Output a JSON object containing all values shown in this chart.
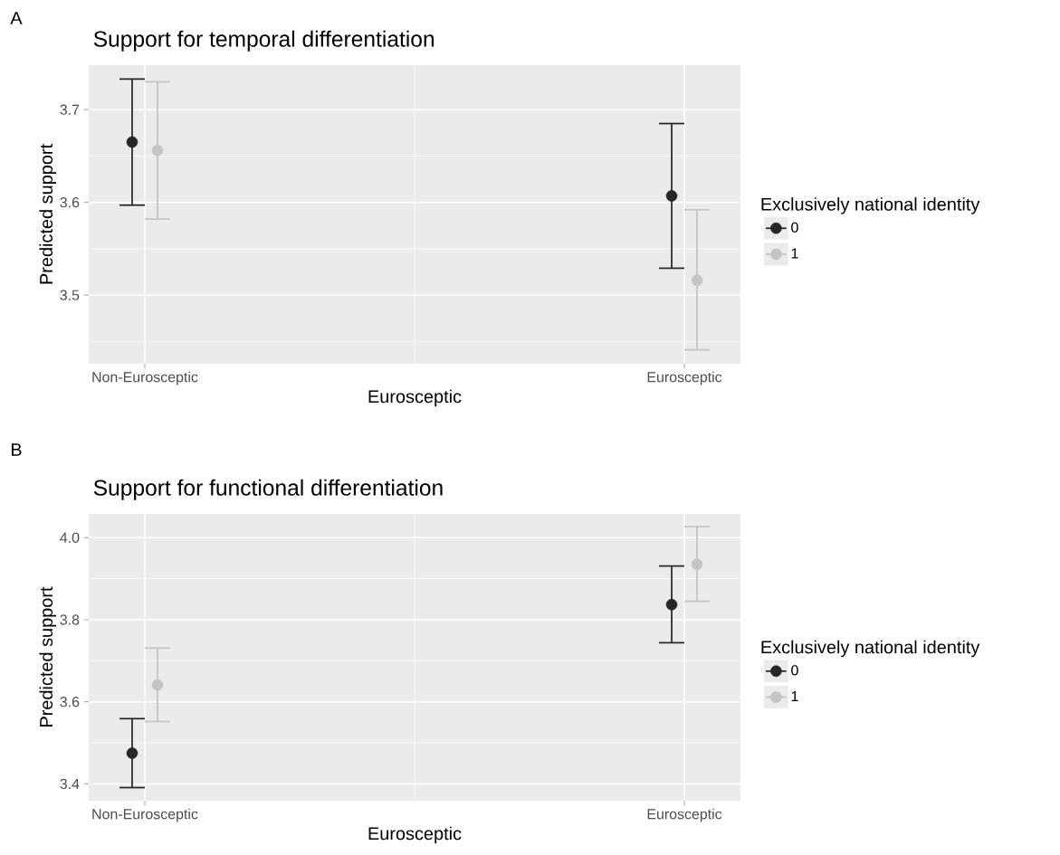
{
  "chart_data": [
    {
      "type": "scatter",
      "title": "Support for temporal differentiation",
      "xlabel": "Eurosceptic",
      "ylabel": "Predicted support",
      "legend_title": "Exclusively national identity",
      "annotations": [
        "A"
      ],
      "categories": [
        "Non-Eurosceptic",
        "Eurosceptic"
      ],
      "ylim": [
        3.426,
        3.748
      ],
      "yticks": [
        3.5,
        3.6,
        3.7
      ],
      "grid": true,
      "legend": "right",
      "marker": "circle",
      "series": [
        {
          "name": "0",
          "color": "#262626",
          "values": [
            3.665,
            3.607
          ],
          "errors": [
            [
              3.597,
              3.733
            ],
            [
              3.529,
              3.685
            ]
          ]
        },
        {
          "name": "1",
          "color": "#c4c4c4",
          "values": [
            3.656,
            3.516
          ],
          "errors": [
            [
              3.582,
              3.73
            ],
            [
              3.441,
              3.592
            ]
          ]
        }
      ]
    },
    {
      "type": "scatter",
      "title": "Support for functional differentiation",
      "xlabel": "Eurosceptic",
      "ylabel": "Predicted support",
      "legend_title": "Exclusively national identity",
      "annotations": [
        "B"
      ],
      "categories": [
        "Non-Eurosceptic",
        "Eurosceptic"
      ],
      "ylim": [
        3.359,
        4.058
      ],
      "yticks": [
        3.4,
        3.6,
        3.8,
        {
          "value": 4.0,
          "label": "4.0"
        }
      ],
      "grid": true,
      "legend": "right",
      "marker": "circle",
      "series": [
        {
          "name": "0",
          "color": "#262626",
          "values": [
            3.475,
            3.837
          ],
          "errors": [
            [
              3.391,
              3.559
            ],
            [
              3.744,
              3.931
            ]
          ]
        },
        {
          "name": "1",
          "color": "#c4c4c4",
          "values": [
            3.641,
            3.935
          ],
          "errors": [
            [
              3.552,
              3.731
            ],
            [
              3.845,
              4.027
            ]
          ]
        }
      ]
    }
  ]
}
